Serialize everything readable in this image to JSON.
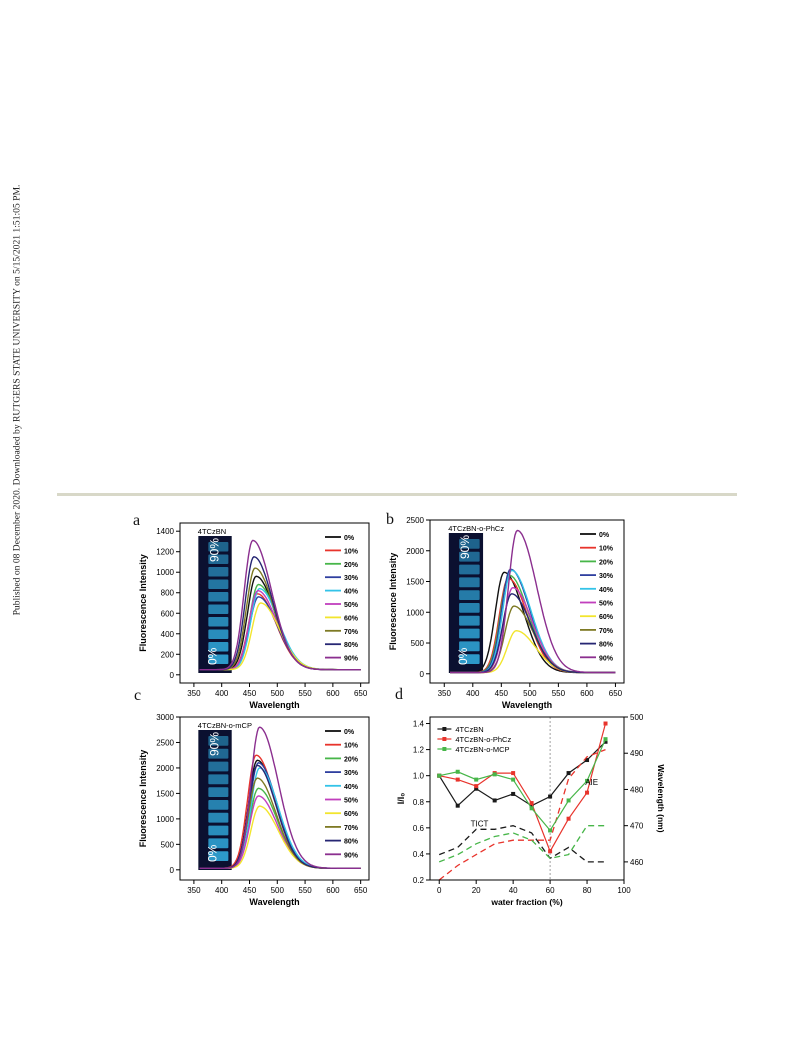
{
  "side_note": "Published on 08 December 2020. Downloaded by RUTGERS STATE UNIVERSITY on 5/15/2021 1:51:05 PM.",
  "panel_letters": [
    "a",
    "b",
    "c",
    "d"
  ],
  "chart_data": [
    {
      "id": "a",
      "type": "line",
      "title": "4TCzBN",
      "xlabel": "Wavelength",
      "ylabel": "Fluorescence Intensity",
      "xlim": [
        325,
        665
      ],
      "ylim": [
        -80,
        1480
      ],
      "xticks": [
        350,
        400,
        450,
        500,
        550,
        600,
        650
      ],
      "yticks": [
        0,
        200,
        400,
        600,
        800,
        1000,
        1200,
        1400
      ],
      "vial_labels": [
        "90%",
        "0%"
      ],
      "series": [
        {
          "name": "0%",
          "color": "#111111",
          "peak_x": 462,
          "peak_y": 960,
          "base_y": 50
        },
        {
          "name": "10%",
          "color": "#e8342c",
          "peak_x": 464,
          "peak_y": 790,
          "base_y": 50
        },
        {
          "name": "20%",
          "color": "#47b649",
          "peak_x": 466,
          "peak_y": 880,
          "base_y": 50
        },
        {
          "name": "30%",
          "color": "#2f3f9f",
          "peak_x": 466,
          "peak_y": 760,
          "base_y": 50
        },
        {
          "name": "40%",
          "color": "#33c3e8",
          "peak_x": 468,
          "peak_y": 840,
          "base_y": 50
        },
        {
          "name": "50%",
          "color": "#c13fbd",
          "peak_x": 465,
          "peak_y": 820,
          "base_y": 50
        },
        {
          "name": "60%",
          "color": "#f2e52d",
          "peak_x": 470,
          "peak_y": 700,
          "base_y": 50
        },
        {
          "name": "70%",
          "color": "#7e7a24",
          "peak_x": 460,
          "peak_y": 1040,
          "base_y": 50
        },
        {
          "name": "80%",
          "color": "#262673",
          "peak_x": 458,
          "peak_y": 1150,
          "base_y": 50
        },
        {
          "name": "90%",
          "color": "#8b2f8f",
          "peak_x": 456,
          "peak_y": 1310,
          "base_y": 50
        }
      ]
    },
    {
      "id": "b",
      "type": "line",
      "title": "4TCzBN-o-PhCz",
      "xlabel": "Wavelength",
      "ylabel": "Fluorescence Intensity",
      "xlim": [
        325,
        665
      ],
      "ylim": [
        -150,
        2500
      ],
      "xticks": [
        350,
        400,
        450,
        500,
        550,
        600,
        650
      ],
      "yticks": [
        0,
        500,
        1000,
        1500,
        2000,
        2500
      ],
      "vial_labels": [
        "90%",
        "0%"
      ],
      "series": [
        {
          "name": "0%",
          "color": "#111111",
          "peak_x": 455,
          "peak_y": 1650,
          "base_y": 20
        },
        {
          "name": "10%",
          "color": "#e8342c",
          "peak_x": 462,
          "peak_y": 1550,
          "base_y": 20
        },
        {
          "name": "20%",
          "color": "#47b649",
          "peak_x": 464,
          "peak_y": 1600,
          "base_y": 20
        },
        {
          "name": "30%",
          "color": "#2f3f9f",
          "peak_x": 466,
          "peak_y": 1700,
          "base_y": 20
        },
        {
          "name": "40%",
          "color": "#33c3e8",
          "peak_x": 468,
          "peak_y": 1680,
          "base_y": 20
        },
        {
          "name": "50%",
          "color": "#c13fbd",
          "peak_x": 470,
          "peak_y": 1400,
          "base_y": 20
        },
        {
          "name": "60%",
          "color": "#f2e52d",
          "peak_x": 476,
          "peak_y": 700,
          "base_y": 20
        },
        {
          "name": "70%",
          "color": "#7e7a24",
          "peak_x": 472,
          "peak_y": 1100,
          "base_y": 20
        },
        {
          "name": "80%",
          "color": "#262673",
          "peak_x": 468,
          "peak_y": 1300,
          "base_y": 20
        },
        {
          "name": "90%",
          "color": "#8b2f8f",
          "peak_x": 478,
          "peak_y": 2330,
          "base_y": 20
        }
      ]
    },
    {
      "id": "c",
      "type": "line",
      "title": "4TCzBN-o-mCP",
      "xlabel": "Wavelength",
      "ylabel": "Fluorescence Intensity",
      "xlim": [
        325,
        665
      ],
      "ylim": [
        -200,
        3000
      ],
      "xticks": [
        350,
        400,
        450,
        500,
        550,
        600,
        650
      ],
      "yticks": [
        0,
        500,
        1000,
        1500,
        2000,
        2500,
        3000
      ],
      "vial_labels": [
        "90%",
        "0%"
      ],
      "series": [
        {
          "name": "0%",
          "color": "#111111",
          "peak_x": 464,
          "peak_y": 2150,
          "base_y": 30
        },
        {
          "name": "10%",
          "color": "#e8342c",
          "peak_x": 462,
          "peak_y": 2250,
          "base_y": 30
        },
        {
          "name": "20%",
          "color": "#47b649",
          "peak_x": 466,
          "peak_y": 1600,
          "base_y": 30
        },
        {
          "name": "30%",
          "color": "#2f3f9f",
          "peak_x": 466,
          "peak_y": 2100,
          "base_y": 30
        },
        {
          "name": "40%",
          "color": "#33c3e8",
          "peak_x": 468,
          "peak_y": 2000,
          "base_y": 30
        },
        {
          "name": "50%",
          "color": "#c13fbd",
          "peak_x": 466,
          "peak_y": 1450,
          "base_y": 30
        },
        {
          "name": "60%",
          "color": "#f2e52d",
          "peak_x": 468,
          "peak_y": 1250,
          "base_y": 30
        },
        {
          "name": "70%",
          "color": "#7e7a24",
          "peak_x": 464,
          "peak_y": 1800,
          "base_y": 30
        },
        {
          "name": "80%",
          "color": "#262673",
          "peak_x": 464,
          "peak_y": 2050,
          "base_y": 30
        },
        {
          "name": "90%",
          "color": "#8b2f8f",
          "peak_x": 468,
          "peak_y": 2800,
          "base_y": 30
        }
      ]
    },
    {
      "id": "d",
      "type": "line",
      "xlabel": "water fraction (%)",
      "ylabel": "I/I₀",
      "y2label": "Wavelength (nm)",
      "xlim": [
        -5,
        100
      ],
      "ylim": [
        0.2,
        1.45
      ],
      "y2lim": [
        455,
        500
      ],
      "xticks": [
        0,
        20,
        40,
        60,
        80,
        100
      ],
      "yticks": [
        0.2,
        0.4,
        0.6,
        0.8,
        1.0,
        1.2,
        1.4
      ],
      "y2ticks": [
        460,
        470,
        480,
        490,
        500
      ],
      "divider_x": 60,
      "annotations": [
        "TICT",
        "AIE"
      ],
      "x": [
        0,
        10,
        20,
        30,
        40,
        50,
        60,
        70,
        80,
        90
      ],
      "series": [
        {
          "name": "4TCzBN",
          "color": "#1a1a1a",
          "intensity": [
            1.0,
            0.77,
            0.9,
            0.81,
            0.86,
            0.77,
            0.84,
            1.02,
            1.12,
            1.26
          ],
          "wavelength": [
            462,
            464,
            469,
            469,
            470,
            468,
            461,
            464,
            460,
            460
          ]
        },
        {
          "name": "4TCzBN-o-PhCz",
          "color": "#e8342c",
          "intensity": [
            1.0,
            0.97,
            0.92,
            1.02,
            1.02,
            0.79,
            0.42,
            0.67,
            0.87,
            1.4
          ],
          "wavelength": [
            455,
            459,
            462,
            465,
            466,
            466,
            466,
            483,
            489,
            491
          ]
        },
        {
          "name": "4TCzBN-o-MCP",
          "color": "#47b649",
          "intensity": [
            1.0,
            1.03,
            0.97,
            1.01,
            0.97,
            0.75,
            0.58,
            0.81,
            0.96,
            1.28
          ],
          "wavelength": [
            460,
            462,
            465,
            467,
            468,
            466,
            461,
            462,
            470,
            470
          ]
        }
      ]
    }
  ]
}
